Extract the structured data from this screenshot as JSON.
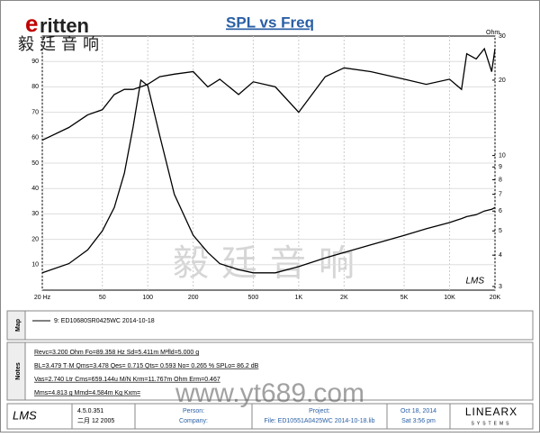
{
  "brand": {
    "logo": "ritten",
    "cn": "毅廷音响"
  },
  "chart_data": {
    "type": "line",
    "title": "SPL vs Freq",
    "y2_label": "Ohm",
    "corner_mark": "LMS",
    "watermark": "毅廷音响",
    "log_x": true,
    "log_y2": true,
    "grid": true,
    "x": [
      20,
      30,
      40,
      50,
      60,
      70,
      80,
      90,
      100,
      120,
      150,
      200,
      250,
      300,
      400,
      500,
      700,
      1000,
      1500,
      2000,
      3000,
      5000,
      7000,
      10000,
      12000,
      13000,
      15000,
      17000,
      19000,
      20000
    ],
    "series": [
      {
        "color": "#000000",
        "values": [
          59,
          64,
          69,
          71,
          77,
          79,
          79,
          80,
          81,
          84,
          85,
          86,
          80,
          83,
          77,
          82,
          80,
          70,
          84,
          87.5,
          86,
          83,
          81,
          83,
          79,
          93,
          91,
          95,
          86,
          95
        ]
      },
      {
        "color": "#000000",
        "axis": "y2",
        "values": [
          3.4,
          3.7,
          4.2,
          5,
          6.2,
          8.5,
          13,
          20,
          19,
          12,
          7,
          4.8,
          4.1,
          3.7,
          3.5,
          3.4,
          3.4,
          3.6,
          3.9,
          4.1,
          4.4,
          4.8,
          5.1,
          5.4,
          5.6,
          5.7,
          5.8,
          6,
          6.1,
          6.2
        ]
      }
    ],
    "xlim": [
      20,
      20000
    ],
    "xticks": [
      {
        "value": 20,
        "label": "20 Hz"
      },
      50,
      100,
      200,
      500,
      {
        "value": 1000,
        "label": "1K"
      },
      {
        "value": 2000,
        "label": "2K"
      },
      {
        "value": 5000,
        "label": "5K"
      },
      {
        "value": 10000,
        "label": "10K"
      },
      {
        "value": 20000,
        "label": "20K"
      }
    ],
    "ylim": [
      0,
      100
    ],
    "yticks": [
      10,
      20,
      30,
      40,
      50,
      60,
      70,
      80,
      90
    ],
    "y2lim": [
      2.9,
      30
    ],
    "y2ticks": [
      3,
      4,
      5,
      6,
      7,
      8,
      9,
      10,
      20,
      30
    ]
  },
  "map": {
    "tab": "Map",
    "entry": "9: ED10680SR0425WC      2014-10-18"
  },
  "notes": {
    "tab": "Notes",
    "lines": [
      "Revc=3.200 Ohm  Fo=89.358 Hz  Sd=5.411m M²fld=5.000 g",
      "BL=3.479 T·M  Qms=3.478  Qes= 0.715  Qts= 0.593  No= 0.265 %  SPLo= 86.2 dB",
      "Vas=2.740 Ltr  Cms=659.144u M/N  Krm=11.767m Ohm  Erm=0.467",
      "Mms=4.813 g  Mmd=4.584m Kg  Kxm="
    ]
  },
  "footer": {
    "lms": "LMS",
    "version": "4.5.0.351",
    "date": "二月 12 2005",
    "person": "Person:",
    "company": "Company:",
    "project": "Project:",
    "file": "File: ED10551A0425WC    2014-10-18.lib",
    "day": "Oct 18, 2014",
    "time": "Sat  3:56 pm",
    "vendor": "LINEARX",
    "vendor_sub": "SYSTEMS"
  },
  "watermark_url": "www.yt689.com"
}
